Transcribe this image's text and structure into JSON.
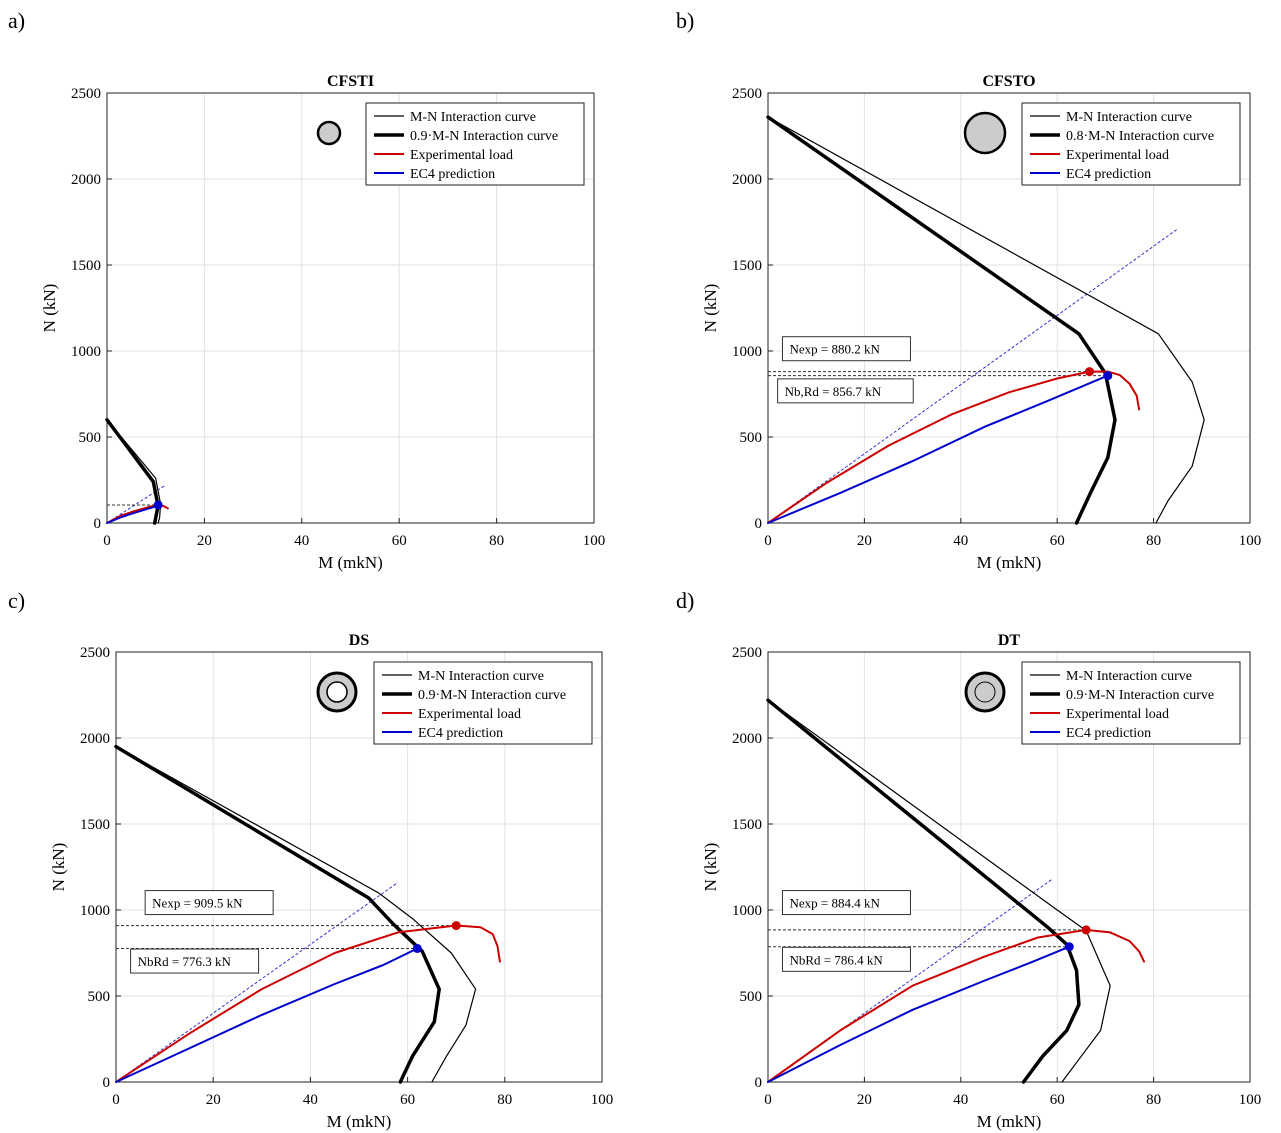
{
  "panel_labels": [
    "a)",
    "b)",
    "c)",
    "d)"
  ],
  "chart_data": [
    {
      "type": "line",
      "title": "CFSTI",
      "xlabel": "M (mkN)",
      "ylabel": "N (kN)",
      "xlim": [
        0,
        100
      ],
      "ylim": [
        0,
        2500
      ],
      "xticks": [
        "0",
        "20",
        "40",
        "60",
        "80",
        "100"
      ],
      "yticks": [
        "0",
        "500",
        "1000",
        "1500",
        "2000",
        "2500"
      ],
      "grid": true,
      "legend_position": "top-right",
      "section_icon": "circle-filled-icon",
      "legend": [
        "M-N Interaction curve",
        "0.9·M-N Interaction curve",
        "Experimental load",
        "EC4 prediction"
      ],
      "series": [
        {
          "name": "M-N Interaction curve",
          "color": "#000000",
          "width": 1.2,
          "x": [
            0,
            10,
            11,
            10.8,
            10.5
          ],
          "y": [
            600,
            260,
            110,
            30,
            0
          ]
        },
        {
          "name": "0.9·M-N Interaction curve",
          "color": "#000000",
          "width": 3.5,
          "x": [
            0,
            9.5,
            10.5,
            10,
            9.8
          ],
          "y": [
            600,
            240,
            100,
            30,
            0
          ]
        },
        {
          "name": "Experimental load",
          "color": "#cc0000",
          "width": 2,
          "x": [
            0,
            3,
            6,
            9,
            10.5,
            11.5,
            12.5
          ],
          "y": [
            0,
            45,
            72,
            96,
            105,
            100,
            85
          ]
        },
        {
          "name": "EC4 prediction",
          "color": "#0000cc",
          "width": 2,
          "x": [
            0,
            3,
            6,
            8.5,
            10.5
          ],
          "y": [
            0,
            35,
            62,
            84,
            100
          ]
        }
      ],
      "dashed_line": {
        "x": [
          0,
          12
        ],
        "y": [
          0,
          220
        ]
      },
      "hlines": [
        {
          "y": 105,
          "x_end": 10.5
        }
      ],
      "points": [
        {
          "x": 10.5,
          "y": 105,
          "color": "#0000cc"
        }
      ],
      "annotations": []
    },
    {
      "type": "line",
      "title": "CFSTO",
      "xlabel": "M (mkN)",
      "ylabel": "N (kN)",
      "xlim": [
        0,
        100
      ],
      "ylim": [
        0,
        2500
      ],
      "xticks": [
        "0",
        "20",
        "40",
        "60",
        "80",
        "100"
      ],
      "yticks": [
        "0",
        "500",
        "1000",
        "1500",
        "2000",
        "2500"
      ],
      "grid": true,
      "legend_position": "top-right",
      "section_icon": "circle-filled-icon",
      "legend": [
        "M-N Interaction curve",
        "0.8·M-N Interaction curve",
        "Experimental load",
        "EC4 prediction"
      ],
      "series": [
        {
          "name": "M-N Interaction curve",
          "color": "#000000",
          "width": 1.2,
          "x": [
            0,
            81,
            88,
            90.5,
            88,
            83,
            80.5
          ],
          "y": [
            2360,
            1100,
            820,
            600,
            330,
            130,
            0
          ]
        },
        {
          "name": "0.8·M-N Interaction curve",
          "color": "#000000",
          "width": 3.5,
          "x": [
            0,
            64.5,
            70,
            72,
            70.5,
            67,
            64
          ],
          "y": [
            2360,
            1100,
            870,
            600,
            380,
            180,
            0
          ]
        },
        {
          "name": "Experimental load",
          "color": "#cc0000",
          "width": 2,
          "x": [
            0,
            12,
            25,
            38,
            50,
            60,
            66.7,
            70.5,
            73,
            75,
            76.5,
            77
          ],
          "y": [
            0,
            230,
            450,
            630,
            760,
            840,
            880,
            880,
            860,
            810,
            740,
            660
          ]
        },
        {
          "name": "EC4 prediction",
          "color": "#0000cc",
          "width": 2,
          "x": [
            0,
            15,
            30,
            45,
            58,
            70.5
          ],
          "y": [
            0,
            175,
            360,
            560,
            710,
            856.7
          ]
        }
      ],
      "dashed_line": {
        "x": [
          0,
          85
        ],
        "y": [
          0,
          1710
        ]
      },
      "hlines": [
        {
          "y": 880.2,
          "x_end": 66.7
        },
        {
          "y": 856.7,
          "x_end": 70.5
        }
      ],
      "points": [
        {
          "x": 66.7,
          "y": 880.2,
          "color": "#cc0000"
        },
        {
          "x": 70.5,
          "y": 856.7,
          "color": "#0000cc"
        }
      ],
      "annotations": [
        {
          "text": "Nexp = 880.2 kN",
          "x": 3,
          "y": 990
        },
        {
          "text": "Nb,Rd = 856.7 kN",
          "x": 2,
          "y": 745
        }
      ]
    },
    {
      "type": "line",
      "title": "DS",
      "xlabel": "M (mkN)",
      "ylabel": "N (kN)",
      "xlim": [
        0,
        100
      ],
      "ylim": [
        0,
        2500
      ],
      "xticks": [
        "0",
        "20",
        "40",
        "60",
        "80",
        "100"
      ],
      "yticks": [
        "0",
        "500",
        "1000",
        "1500",
        "2000",
        "2500"
      ],
      "grid": true,
      "legend_position": "top-right",
      "section_icon": "ring-hollow-icon",
      "legend": [
        "M-N Interaction curve",
        "0.9·M-N Interaction curve",
        "Experimental load",
        "EC4 prediction"
      ],
      "series": [
        {
          "name": "M-N Interaction curve",
          "color": "#000000",
          "width": 1.2,
          "x": [
            0,
            54,
            61,
            69,
            74,
            72,
            68,
            65
          ],
          "y": [
            1950,
            1100,
            950,
            750,
            540,
            330,
            150,
            0
          ]
        },
        {
          "name": "0.9·M-N Interaction curve",
          "color": "#000000",
          "width": 3.5,
          "x": [
            0,
            52,
            57,
            63,
            66.5,
            65.5,
            61,
            58.5
          ],
          "y": [
            1950,
            1070,
            920,
            760,
            540,
            350,
            150,
            0
          ]
        },
        {
          "name": "Experimental load",
          "color": "#cc0000",
          "width": 2,
          "x": [
            0,
            15,
            30,
            45,
            58,
            70,
            75,
            77.5,
            78.5,
            79
          ],
          "y": [
            0,
            280,
            540,
            750,
            870,
            910,
            900,
            860,
            790,
            700
          ]
        },
        {
          "name": "EC4 prediction",
          "color": "#0000cc",
          "width": 2,
          "x": [
            0,
            15,
            30,
            45,
            55,
            62
          ],
          "y": [
            0,
            195,
            390,
            570,
            680,
            776.3
          ]
        }
      ],
      "dashed_line": {
        "x": [
          0,
          58
        ],
        "y": [
          0,
          1160
        ]
      },
      "hlines": [
        {
          "y": 909.5,
          "x_end": 70
        },
        {
          "y": 776.3,
          "x_end": 62
        }
      ],
      "points": [
        {
          "x": 70,
          "y": 909.5,
          "color": "#cc0000"
        },
        {
          "x": 62,
          "y": 776.3,
          "color": "#0000cc"
        }
      ],
      "annotations": [
        {
          "text": "Nexp = 909.5 kN",
          "x": 6,
          "y": 1020
        },
        {
          "text": "NbRd = 776.3 kN",
          "x": 3,
          "y": 680
        }
      ]
    },
    {
      "type": "line",
      "title": "DT",
      "xlabel": "M (mkN)",
      "ylabel": "N (kN)",
      "xlim": [
        0,
        100
      ],
      "ylim": [
        0,
        2500
      ],
      "xticks": [
        "0",
        "20",
        "40",
        "60",
        "80",
        "100"
      ],
      "yticks": [
        "0",
        "500",
        "1000",
        "1500",
        "2000",
        "2500"
      ],
      "grid": true,
      "legend_position": "top-right",
      "section_icon": "double-ring-icon",
      "legend": [
        "M-N Interaction curve",
        "0.9·M-N Interaction curve",
        "Experimental load",
        "EC4 prediction"
      ],
      "series": [
        {
          "name": "M-N Interaction curve",
          "color": "#000000",
          "width": 1.2,
          "x": [
            0,
            60,
            66,
            71,
            69,
            65,
            61
          ],
          "y": [
            2220,
            1000,
            880,
            560,
            300,
            150,
            0
          ]
        },
        {
          "name": "0.9·M-N Interaction curve",
          "color": "#000000",
          "width": 3.5,
          "x": [
            0,
            58,
            62,
            64,
            64.5,
            62,
            57,
            53
          ],
          "y": [
            2220,
            900,
            800,
            650,
            450,
            300,
            150,
            0
          ]
        },
        {
          "name": "Experimental load",
          "color": "#cc0000",
          "width": 2,
          "x": [
            0,
            15,
            30,
            45,
            56,
            66,
            71,
            75,
            77,
            78
          ],
          "y": [
            0,
            300,
            560,
            730,
            840,
            884.4,
            870,
            820,
            760,
            700
          ]
        },
        {
          "name": "EC4 prediction",
          "color": "#0000cc",
          "width": 2,
          "x": [
            0,
            15,
            30,
            45,
            55,
            62.5
          ],
          "y": [
            0,
            215,
            420,
            590,
            700,
            786.4
          ]
        }
      ],
      "dashed_line": {
        "x": [
          0,
          59
        ],
        "y": [
          0,
          1180
        ]
      },
      "hlines": [
        {
          "y": 884.4,
          "x_end": 66
        },
        {
          "y": 786.4,
          "x_end": 62.5
        }
      ],
      "points": [
        {
          "x": 66,
          "y": 884.4,
          "color": "#cc0000"
        },
        {
          "x": 62.5,
          "y": 786.4,
          "color": "#0000cc"
        }
      ],
      "annotations": [
        {
          "text": "Nexp = 884.4 kN",
          "x": 3,
          "y": 1020
        },
        {
          "text": "NbRd = 786.4 kN",
          "x": 3,
          "y": 690
        }
      ]
    }
  ]
}
